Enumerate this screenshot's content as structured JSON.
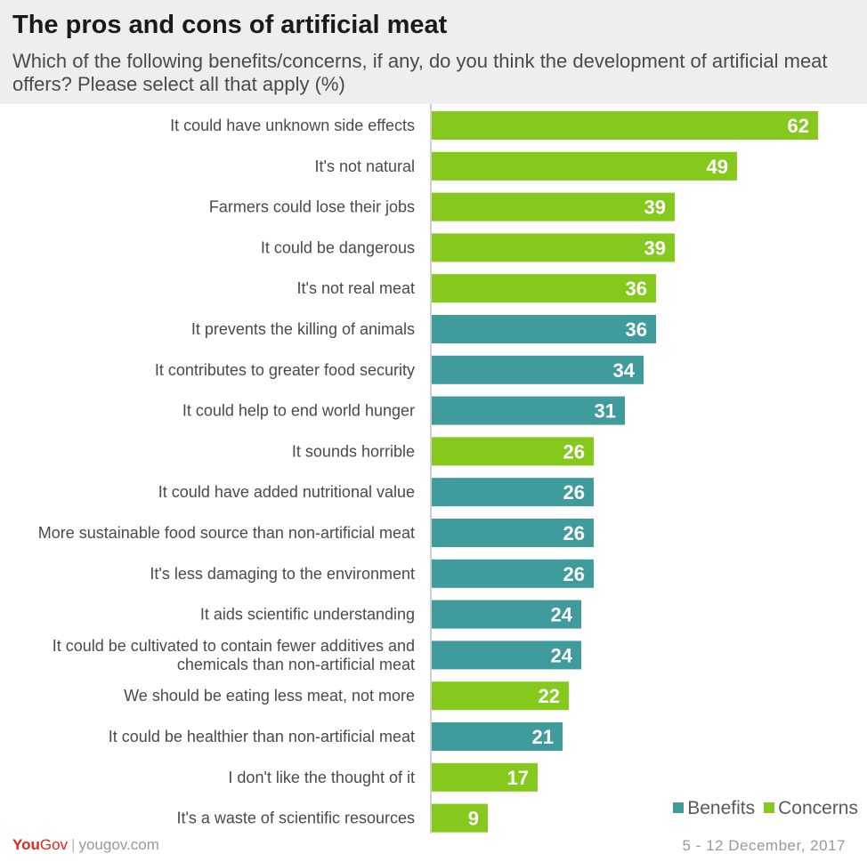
{
  "title": "The pros and cons of artificial meat",
  "subtitle": "Which of the following benefits/concerns, if any, do you think the development of artificial meat offers? Please select all that apply (%)",
  "colors": {
    "benefits": "#3f9b9c",
    "concerns": "#84c91c",
    "axis": "#cfcfcf"
  },
  "legend": {
    "benefits": "Benefits",
    "concerns": "Concerns"
  },
  "footer": {
    "logo_you": "You",
    "logo_gov": "Gov",
    "separator": "|",
    "url": "yougov.com",
    "date": "5 - 12 December, 2017"
  },
  "chart_data": {
    "type": "bar",
    "orientation": "horizontal",
    "xlim": [
      0,
      62
    ],
    "categories": [
      "It could have unknown side effects",
      "It's not natural",
      "Farmers could lose their jobs",
      "It could be dangerous",
      "It's not real meat",
      "It prevents the killing of animals",
      "It contributes to greater food security",
      "It could help to end world hunger",
      "It sounds horrible",
      "It could have added nutritional value",
      "More sustainable food source than non-artificial meat",
      "It's less damaging to the environment",
      "It aids scientific understanding",
      "It could be cultivated to contain fewer additives and chemicals than non-artificial meat",
      "We should be eating less meat, not more",
      "It could be healthier than non-artificial meat",
      "I don't like the thought of it",
      "It's a waste of scientific resources"
    ],
    "values": [
      62,
      49,
      39,
      39,
      36,
      36,
      34,
      31,
      26,
      26,
      26,
      26,
      24,
      24,
      22,
      21,
      17,
      9
    ],
    "groups": [
      "Concerns",
      "Concerns",
      "Concerns",
      "Concerns",
      "Concerns",
      "Benefits",
      "Benefits",
      "Benefits",
      "Concerns",
      "Benefits",
      "Benefits",
      "Benefits",
      "Benefits",
      "Benefits",
      "Concerns",
      "Benefits",
      "Concerns",
      "Concerns"
    ],
    "legend_position": "bottom-right",
    "grid": false
  }
}
